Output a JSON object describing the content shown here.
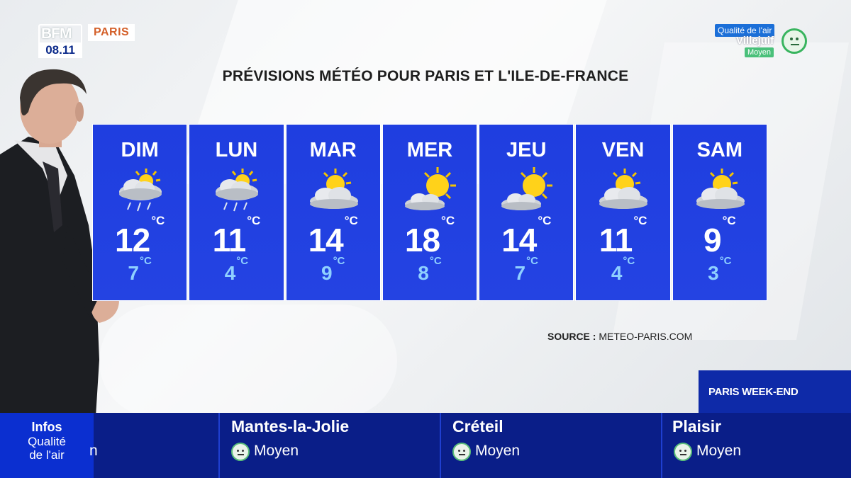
{
  "header": {
    "logo_text": "BFM",
    "time": "08.11",
    "city": "PARIS"
  },
  "air_quality": {
    "title": "Qualité de l'air",
    "city": "Villejuif",
    "level": "Moyen"
  },
  "title": "PRÉVISIONS MÉTÉO POUR PARIS ET L'ILE-DE-FRANCE",
  "unit": "°C",
  "forecast": [
    {
      "day": "DIM",
      "max": "12",
      "min": "7",
      "icon": "sun-cloud-rain-icon"
    },
    {
      "day": "LUN",
      "max": "11",
      "min": "4",
      "icon": "sun-cloud-rain-icon"
    },
    {
      "day": "MAR",
      "max": "14",
      "min": "9",
      "icon": "sun-behind-cloud-icon"
    },
    {
      "day": "MER",
      "max": "18",
      "min": "8",
      "icon": "sun-small-cloud-icon"
    },
    {
      "day": "JEU",
      "max": "14",
      "min": "7",
      "icon": "sun-small-cloud-icon"
    },
    {
      "day": "VEN",
      "max": "11",
      "min": "4",
      "icon": "sun-behind-cloud-icon"
    },
    {
      "day": "SAM",
      "max": "9",
      "min": "3",
      "icon": "sun-behind-cloud-icon"
    }
  ],
  "source": {
    "label": "SOURCE :",
    "value": "METEO-PARIS.COM"
  },
  "ticker": {
    "section_label": "PARIS WEEK-END",
    "info_l1": "Infos",
    "info_l2": "Qualité",
    "info_l3": "de l'air",
    "partial_text": "n",
    "items": [
      {
        "city": "Mantes-la-Jolie",
        "level": "Moyen"
      },
      {
        "city": "Créteil",
        "level": "Moyen"
      },
      {
        "city": "Plaisir",
        "level": "Moyen"
      }
    ]
  },
  "colors": {
    "panel_blue": "#2443e2",
    "min_temp": "#8fd0ff",
    "ticker_blue": "#0a1e88",
    "city_tag": "#d4602a"
  }
}
